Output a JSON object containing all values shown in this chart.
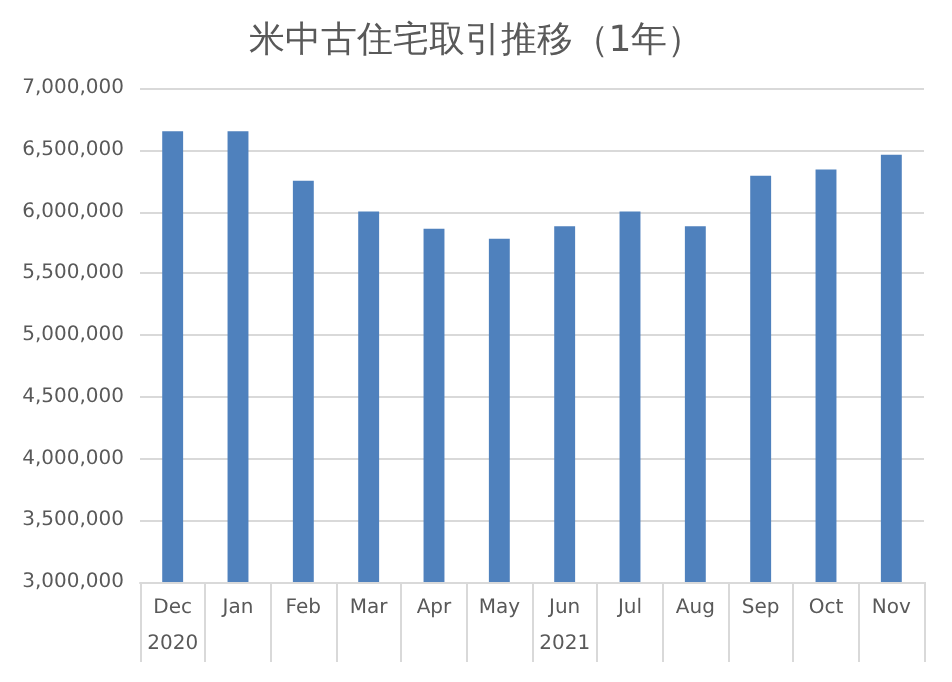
{
  "chart_data": {
    "type": "bar",
    "title": "米中古住宅取引推移（1年）",
    "categories": [
      "Dec",
      "Jan",
      "Feb",
      "Mar",
      "Apr",
      "May",
      "Jun",
      "Jul",
      "Aug",
      "Sep",
      "Oct",
      "Nov"
    ],
    "values": [
      6650000,
      6650000,
      6250000,
      6000000,
      5860000,
      5780000,
      5880000,
      6000000,
      5880000,
      6290000,
      6340000,
      6460000
    ],
    "color": "#4f81bd",
    "ylim": [
      3000000,
      7000000
    ],
    "yticks": [
      {
        "value": 3000000,
        "label": "3,000,000"
      },
      {
        "value": 3500000,
        "label": "3,500,000"
      },
      {
        "value": 4000000,
        "label": "4,000,000"
      },
      {
        "value": 4500000,
        "label": "4,500,000"
      },
      {
        "value": 5000000,
        "label": "5,000,000"
      },
      {
        "value": 5500000,
        "label": "5,500,000"
      },
      {
        "value": 6000000,
        "label": "6,000,000"
      },
      {
        "value": 6500000,
        "label": "6,500,000"
      },
      {
        "value": 7000000,
        "label": "7,000,000"
      }
    ],
    "grid": "y",
    "annotations": [
      "2020",
      "2021"
    ]
  }
}
